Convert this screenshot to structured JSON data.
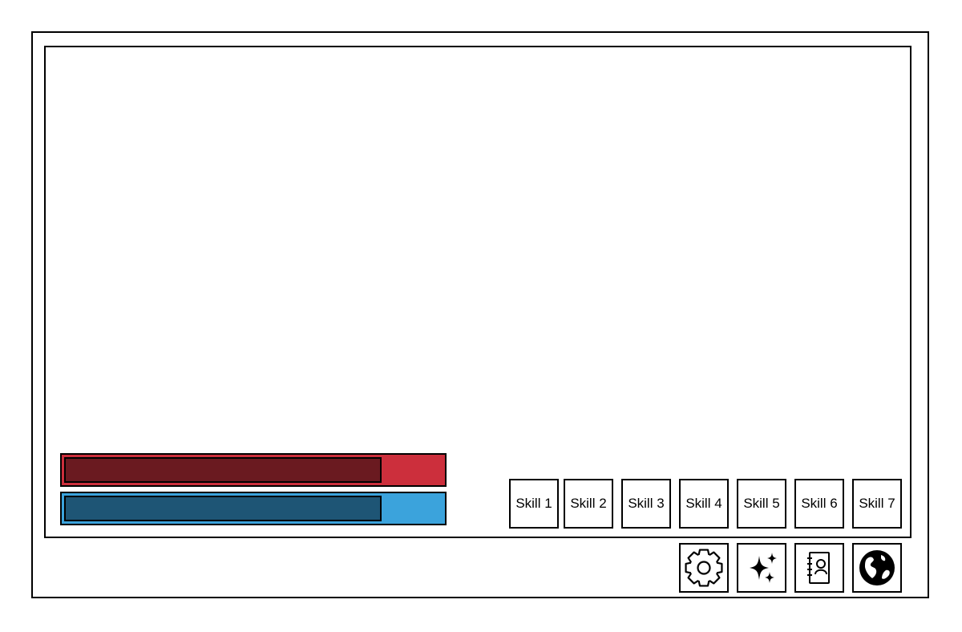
{
  "hud": {
    "health": {
      "fill_fraction": 0.84,
      "fill_color": "#6a1a20",
      "track_color": "#cc2f3c"
    },
    "mana": {
      "fill_fraction": 0.84,
      "fill_color": "#1e5575",
      "track_color": "#3ba3dc"
    }
  },
  "skills": [
    {
      "label": "Skill 1"
    },
    {
      "label": "Skill 2"
    },
    {
      "label": "Skill 3"
    },
    {
      "label": "Skill 4"
    },
    {
      "label": "Skill 5"
    },
    {
      "label": "Skill 6"
    },
    {
      "label": "Skill 7"
    }
  ],
  "menu": [
    {
      "icon": "gear-icon"
    },
    {
      "icon": "sparkles-icon"
    },
    {
      "icon": "contacts-book-icon"
    },
    {
      "icon": "globe-icon"
    }
  ]
}
